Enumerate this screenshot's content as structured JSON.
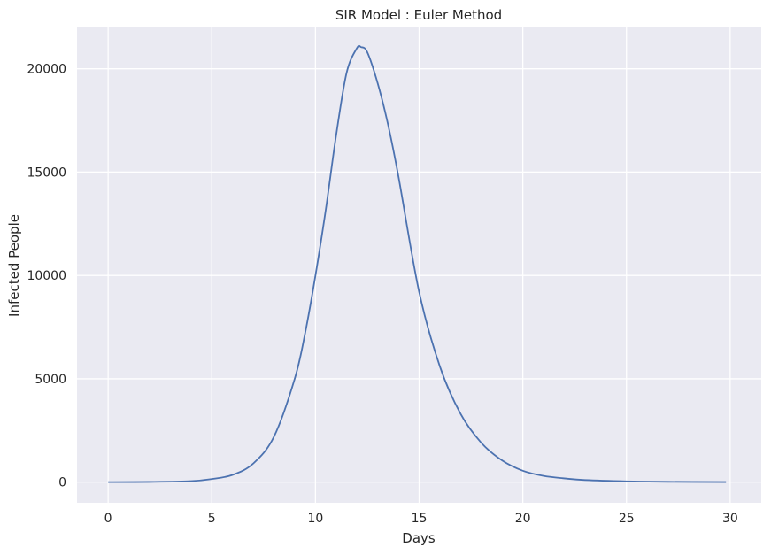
{
  "chart_data": {
    "type": "line",
    "title": "SIR Model : Euler Method",
    "xlabel": "Days",
    "ylabel": "Infected People",
    "xlim": [
      -1.5,
      31.5
    ],
    "ylim": [
      -1000,
      22000
    ],
    "xticks": [
      0,
      5,
      10,
      15,
      20,
      25,
      30
    ],
    "yticks": [
      0,
      5000,
      10000,
      15000,
      20000
    ],
    "xtick_labels": [
      "0",
      "5",
      "10",
      "15",
      "20",
      "25",
      "30"
    ],
    "ytick_labels": [
      "0",
      "5000",
      "10000",
      "15000",
      "20000"
    ],
    "grid": true,
    "background": "#eaeaf2",
    "grid_color": "#ffffff",
    "series": [
      {
        "color": "#4c72b0",
        "x": [
          0,
          2,
          4,
          5,
          6,
          7,
          8,
          9,
          9.5,
          10,
          10.5,
          11,
          11.5,
          12,
          12.2,
          12.5,
          13,
          13.5,
          14,
          15,
          16,
          17,
          18,
          19,
          20,
          21,
          22,
          23,
          25,
          27,
          29.8
        ],
        "y": [
          0,
          10,
          50,
          150,
          350,
          900,
          2200,
          5000,
          7200,
          10000,
          13200,
          16800,
          19800,
          21000,
          21050,
          20800,
          19300,
          17300,
          14800,
          9200,
          5600,
          3300,
          1900,
          1050,
          550,
          300,
          180,
          100,
          40,
          15,
          5
        ]
      }
    ]
  }
}
